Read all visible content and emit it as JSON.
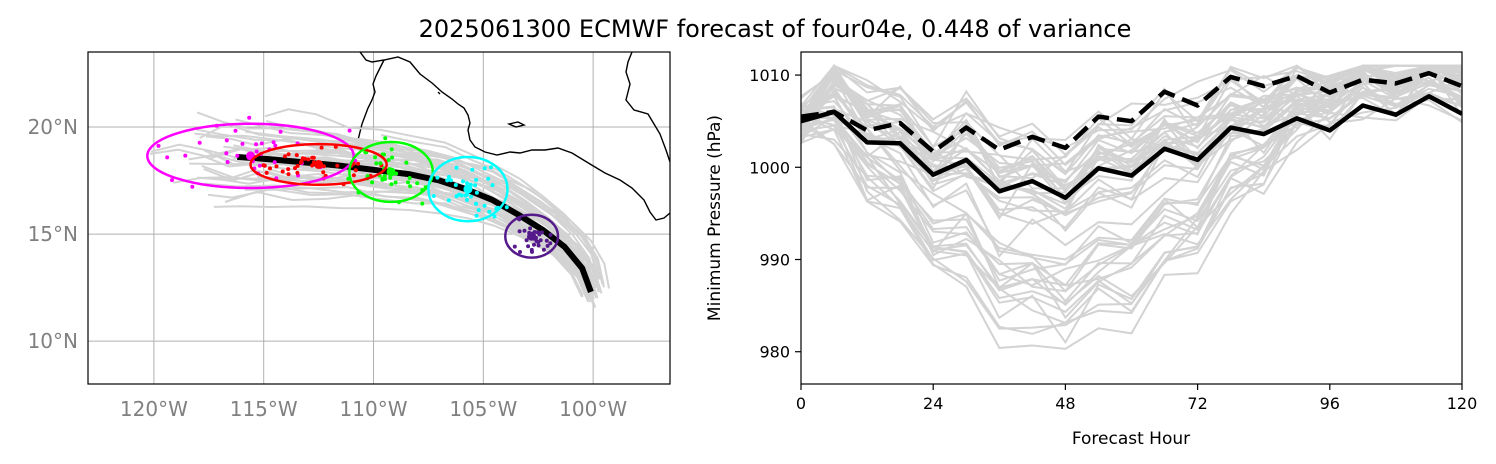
{
  "figure": {
    "title": "2025061300 ECMWF forecast of four04e, 0.448 of variance"
  },
  "colors": {
    "ensemble": "#d3d3d3",
    "mean": "#000000",
    "grid": "#b0b0b0",
    "coast": "#000000",
    "tick_map": "#808080",
    "clusters": [
      "#ff00ff",
      "#ff0000",
      "#00ff00",
      "#00ffff",
      "#551a8b"
    ]
  },
  "chart_data": [
    {
      "type": "map-tracks",
      "lon_range": [
        -123,
        -96.5
      ],
      "lat_range": [
        8,
        23.5
      ],
      "grid": true,
      "lon_ticks": [
        -120,
        -115,
        -110,
        -105,
        -100
      ],
      "lon_tick_labels": [
        "120°W",
        "115°W",
        "110°W",
        "105°W",
        "100°W"
      ],
      "lat_ticks": [
        10,
        15,
        20
      ],
      "lat_tick_labels": [
        "10°N",
        "15°N",
        "20°N"
      ],
      "mean_track": [
        [
          -100.1,
          12.3
        ],
        [
          -100.5,
          13.4
        ],
        [
          -101.3,
          14.4
        ],
        [
          -102.3,
          15.2
        ],
        [
          -103.4,
          15.9
        ],
        [
          -104.6,
          16.6
        ],
        [
          -105.8,
          17.1
        ],
        [
          -107.0,
          17.5
        ],
        [
          -108.4,
          17.8
        ],
        [
          -110.0,
          18.0
        ],
        [
          -111.6,
          18.2
        ],
        [
          -113.2,
          18.35
        ],
        [
          -114.8,
          18.5
        ],
        [
          -116.2,
          18.6
        ]
      ],
      "clusters": [
        {
          "center": [
            -115.6,
            18.65
          ],
          "rx": 4.7,
          "ry": 1.5,
          "spread": [
            3.5,
            1.2
          ],
          "n": 34
        },
        {
          "center": [
            -112.5,
            18.25
          ],
          "rx": 3.1,
          "ry": 0.95,
          "spread": [
            2.2,
            0.6
          ],
          "n": 40
        },
        {
          "center": [
            -109.2,
            17.9
          ],
          "rx": 1.9,
          "ry": 1.4,
          "spread": [
            1.3,
            1.0
          ],
          "n": 36
        },
        {
          "center": [
            -105.7,
            17.1
          ],
          "rx": 1.8,
          "ry": 1.5,
          "spread": [
            1.3,
            1.1
          ],
          "n": 36
        },
        {
          "center": [
            -102.8,
            14.9
          ],
          "rx": 1.2,
          "ry": 1.0,
          "spread": [
            0.8,
            0.6
          ],
          "n": 30
        }
      ]
    },
    {
      "type": "line",
      "xlabel": "Forecast Hour",
      "ylabel": "Minimum Pressure (hPa)",
      "xlim": [
        0,
        120
      ],
      "ylim": [
        976.5,
        1012.5
      ],
      "xticks": [
        0,
        24,
        48,
        72,
        96,
        120
      ],
      "yticks": [
        980,
        990,
        1000,
        1010
      ],
      "x": [
        0,
        6,
        12,
        18,
        24,
        30,
        36,
        42,
        48,
        54,
        60,
        66,
        72,
        78,
        84,
        90,
        96,
        102,
        108,
        114,
        120
      ],
      "mean_solid": [
        1005,
        1006,
        1002.7,
        1002.6,
        999.2,
        1000.8,
        997.4,
        998.5,
        996.7,
        999.9,
        999.1,
        1002,
        1000.8,
        1004.3,
        1003.6,
        1005.3,
        1004,
        1006.7,
        1005.7,
        1007.7,
        1005.8
      ],
      "mean_dashed": [
        1005.5,
        1006,
        1004,
        1004.8,
        1001.7,
        1004.3,
        1001.9,
        1003.3,
        1002.1,
        1005.5,
        1005,
        1008.2,
        1006.7,
        1009.8,
        1008.8,
        1009.9,
        1008.1,
        1009.5,
        1009.1,
        1010.2,
        1008.8
      ]
    }
  ]
}
